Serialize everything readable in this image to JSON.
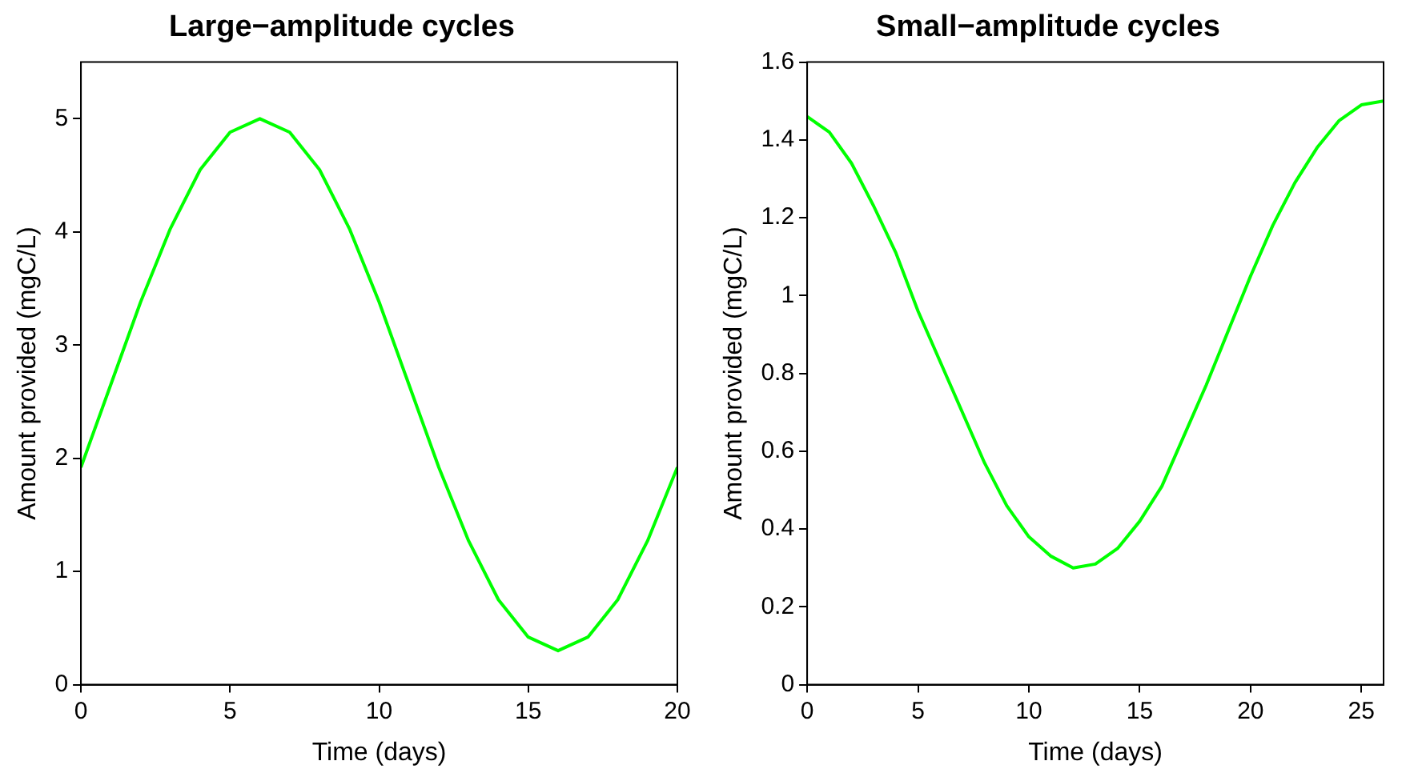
{
  "chart_data": [
    {
      "type": "line",
      "title": "Large−amplitude cycles",
      "xlabel": "Time (days)",
      "ylabel": "Amount provided (mgC/L)",
      "x": [
        0,
        1,
        2,
        3,
        4,
        5,
        6,
        7,
        8,
        9,
        10,
        11,
        12,
        13,
        14,
        15,
        16,
        17,
        18,
        19,
        20
      ],
      "values": [
        1.92,
        2.65,
        3.38,
        4.03,
        4.55,
        4.88,
        5.0,
        4.88,
        4.55,
        4.03,
        3.38,
        2.65,
        1.92,
        1.27,
        0.75,
        0.42,
        0.3,
        0.42,
        0.75,
        1.27,
        1.92
      ],
      "color": "#00ff00",
      "xlim": [
        0,
        20
      ],
      "xticks": [
        0,
        5,
        10,
        15,
        20
      ],
      "ylim": [
        0,
        5.5
      ],
      "yticks": [
        0,
        1,
        2,
        3,
        4,
        5
      ]
    },
    {
      "type": "line",
      "title": "Small−amplitude cycles",
      "xlabel": "Time (days)",
      "ylabel": "Amount provided (mgC/L)",
      "x": [
        0,
        1,
        2,
        3,
        4,
        5,
        6,
        7,
        8,
        9,
        10,
        11,
        12,
        13,
        14,
        15,
        16,
        17,
        18,
        19,
        20,
        21,
        22,
        23,
        24,
        25,
        26
      ],
      "values": [
        1.46,
        1.42,
        1.34,
        1.23,
        1.11,
        0.96,
        0.83,
        0.7,
        0.57,
        0.46,
        0.38,
        0.33,
        0.3,
        0.31,
        0.35,
        0.42,
        0.51,
        0.64,
        0.77,
        0.91,
        1.05,
        1.18,
        1.29,
        1.38,
        1.45,
        1.49,
        1.5
      ],
      "color": "#00ff00",
      "xlim": [
        0,
        26
      ],
      "xticks": [
        0,
        5,
        10,
        15,
        20,
        25
      ],
      "ylim": [
        0,
        1.6
      ],
      "yticks": [
        0,
        0.2,
        0.4,
        0.6,
        0.8,
        1,
        1.2,
        1.4,
        1.6
      ]
    }
  ]
}
